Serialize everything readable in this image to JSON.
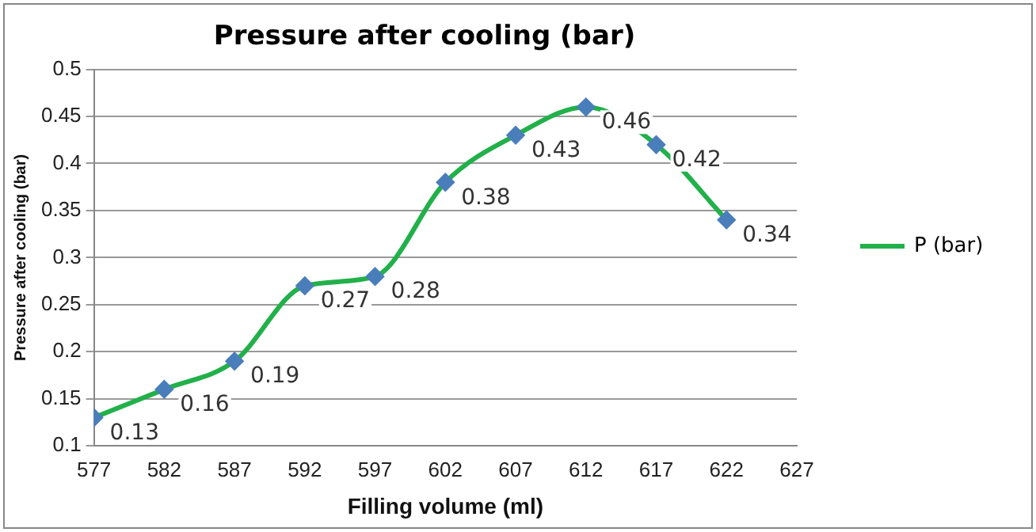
{
  "chart_data": {
    "type": "line",
    "title": "Pressure after cooling (bar)",
    "xlabel": "Filling volume (ml)",
    "ylabel": "Pressure after cooling (bar)",
    "x": [
      577,
      582,
      587,
      592,
      597,
      602,
      607,
      612,
      617,
      622
    ],
    "series": [
      {
        "name": "P (bar)",
        "color": "#22b04a",
        "values": [
          0.13,
          0.16,
          0.19,
          0.27,
          0.28,
          0.38,
          0.43,
          0.46,
          0.42,
          0.34
        ]
      }
    ],
    "xlim": [
      577,
      627
    ],
    "xticks": [
      577,
      582,
      587,
      592,
      597,
      602,
      607,
      612,
      617,
      622,
      627
    ],
    "ylim": [
      0.1,
      0.5
    ],
    "yticks": [
      0.1,
      0.15,
      0.2,
      0.25,
      0.3,
      0.35,
      0.4,
      0.45,
      0.5
    ],
    "grid": "y",
    "legend": "right",
    "marker": "diamond",
    "line_style": "solid",
    "data_labels": true
  }
}
